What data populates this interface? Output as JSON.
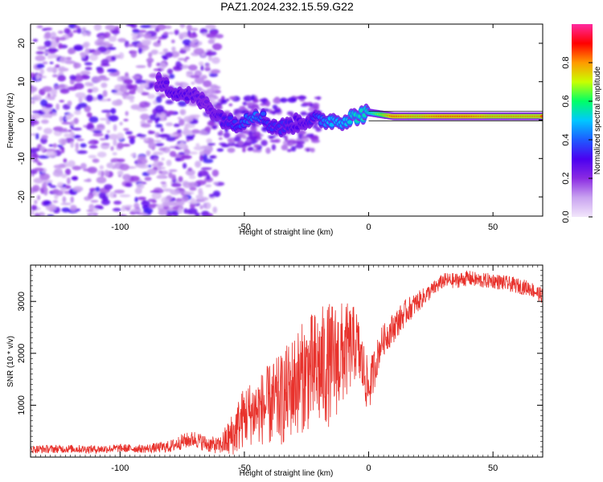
{
  "title": "PAZ1.2024.232.15.59.G22",
  "colors": {
    "snr_line": "#e8322c",
    "colormap": [
      "#f2e6fb",
      "#c9a3f0",
      "#8b2be2",
      "#4b00f0",
      "#1e5bff",
      "#00c8ff",
      "#00ff66",
      "#c8ff00",
      "#ff9a00",
      "#ff0000",
      "#ff2aa0"
    ]
  },
  "chart_data": [
    {
      "type": "heatmap",
      "xlabel": "Height of straight line (km)",
      "ylabel": "Frequency (Hz)",
      "xlim": [
        -136,
        70
      ],
      "ylim": [
        -25,
        25
      ],
      "x_ticks": [
        -100,
        -50,
        0,
        50
      ],
      "x_tick_labels": [
        "-100",
        "-50",
        "0",
        "50"
      ],
      "y_ticks": [
        20,
        10,
        0,
        -10,
        -20
      ],
      "y_tick_labels": [
        "20",
        "10",
        "0",
        "-10",
        "-20"
      ],
      "grid": false,
      "colorbar": {
        "label": "Normalized spectral amplitude",
        "range": [
          0,
          1
        ],
        "ticks": [
          0.0,
          0.2,
          0.4,
          0.6,
          0.8
        ],
        "tick_labels": [
          "0.0",
          "0.2",
          "0.4",
          "0.6",
          "0.8"
        ]
      },
      "ridge": {
        "x": [
          -85,
          -80,
          -75,
          -70,
          -65,
          -60,
          -55,
          -50,
          -45,
          -40,
          -35,
          -30,
          -25,
          -20,
          -15,
          -10,
          -5,
          0,
          10,
          20,
          30,
          40,
          50,
          60,
          70
        ],
        "frequency": [
          10,
          8,
          7,
          6,
          4,
          1,
          -1,
          0,
          2,
          -1,
          -2,
          -1,
          0,
          0,
          0,
          0,
          1,
          2,
          1,
          1,
          1,
          1,
          1,
          1,
          1
        ],
        "amplitude": [
          0.25,
          0.3,
          0.3,
          0.28,
          0.25,
          0.3,
          0.35,
          0.4,
          0.45,
          0.35,
          0.35,
          0.3,
          0.3,
          0.4,
          0.5,
          0.5,
          0.55,
          0.55,
          0.9,
          0.85,
          0.9,
          0.9,
          0.85,
          0.85,
          0.85
        ]
      }
    },
    {
      "type": "line",
      "xlabel": "Height of straight line (km)",
      "ylabel": "SNR (10 * v/v)",
      "xlim": [
        -136,
        70
      ],
      "ylim": [
        0,
        3700
      ],
      "x_ticks": [
        -100,
        -50,
        0,
        50
      ],
      "x_tick_labels": [
        "-100",
        "-50",
        "0",
        "50"
      ],
      "y_ticks": [
        1000,
        2000,
        3000
      ],
      "y_tick_labels": [
        "1000",
        "2000",
        "3000"
      ],
      "grid": false,
      "series": [
        {
          "x": [
            -136,
            -120,
            -110,
            -100,
            -90,
            -80,
            -75,
            -70,
            -65,
            -60,
            -55,
            -50,
            -45,
            -40,
            -35,
            -30,
            -25,
            -20,
            -15,
            -10,
            -5,
            0,
            5,
            10,
            15,
            20,
            25,
            30,
            35,
            40,
            45,
            50,
            55,
            60,
            65,
            70
          ],
          "values": [
            150,
            160,
            150,
            170,
            160,
            200,
            300,
            350,
            250,
            220,
            400,
            800,
            900,
            1000,
            1100,
            1400,
            1600,
            1700,
            1800,
            2000,
            2200,
            1300,
            2200,
            2500,
            2800,
            3000,
            3200,
            3400,
            3400,
            3450,
            3400,
            3400,
            3350,
            3300,
            3250,
            3100
          ],
          "variability": [
            80,
            80,
            80,
            80,
            80,
            120,
            150,
            160,
            160,
            160,
            450,
            600,
            650,
            800,
            900,
            1000,
            1100,
            1200,
            1200,
            1000,
            700,
            500,
            300,
            300,
            250,
            200,
            150,
            150,
            150,
            150,
            150,
            150,
            150,
            150,
            150,
            150
          ]
        }
      ]
    }
  ]
}
